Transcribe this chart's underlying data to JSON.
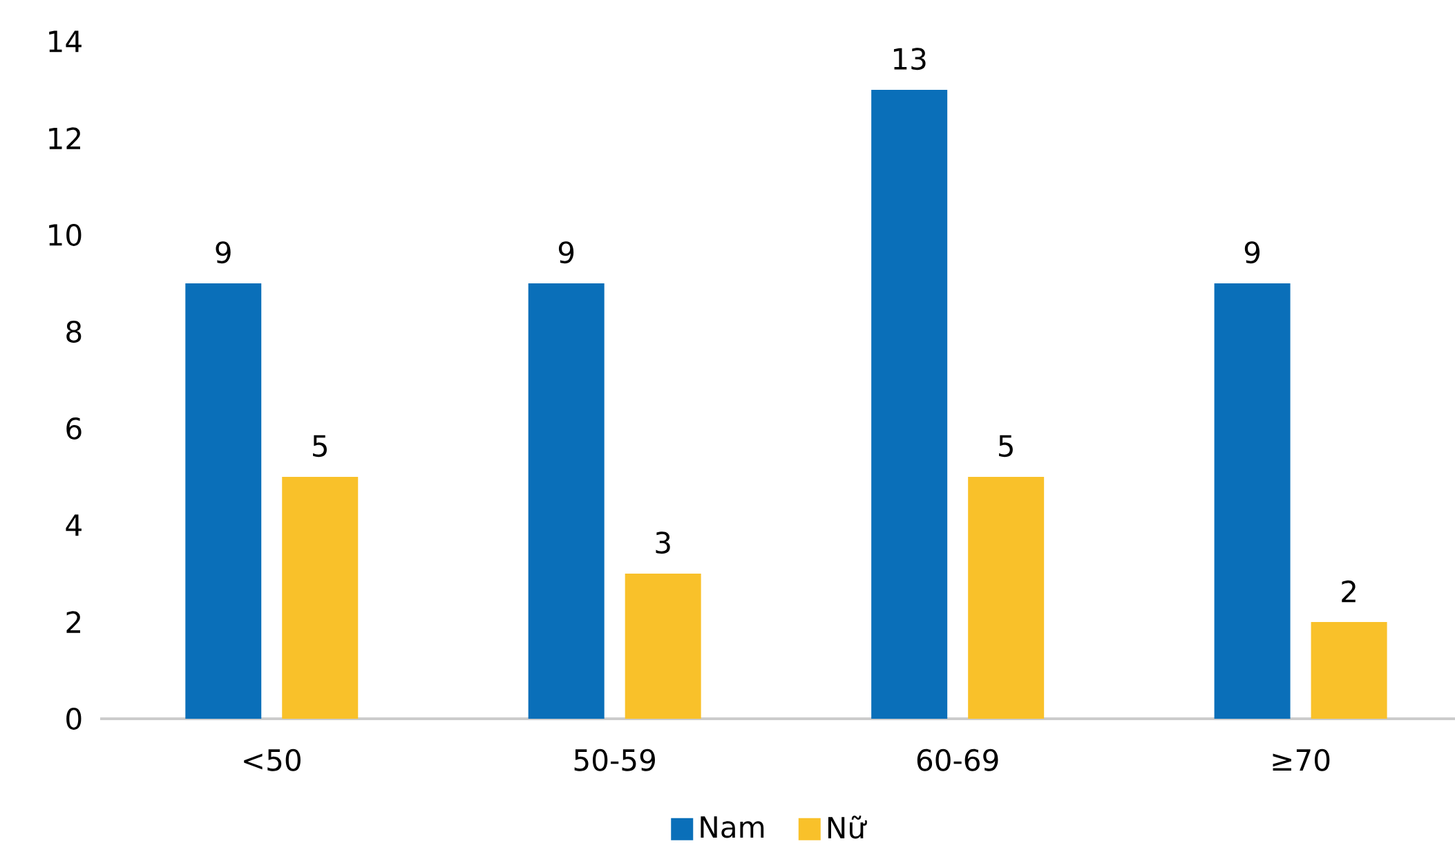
{
  "chart_data": {
    "type": "bar",
    "categories": [
      "<50",
      "50-59",
      "60-69",
      "≥70"
    ],
    "series": [
      {
        "name": "Nam",
        "color": "#0a6fb9",
        "values": [
          9,
          9,
          13,
          9
        ]
      },
      {
        "name": "Nữ",
        "color": "#f9c12a",
        "values": [
          5,
          3,
          5,
          2
        ]
      }
    ],
    "ylim": [
      0,
      14
    ],
    "yticks": [
      0,
      2,
      4,
      6,
      8,
      10,
      12,
      14
    ],
    "legend": "bottom",
    "data_labels": true
  }
}
